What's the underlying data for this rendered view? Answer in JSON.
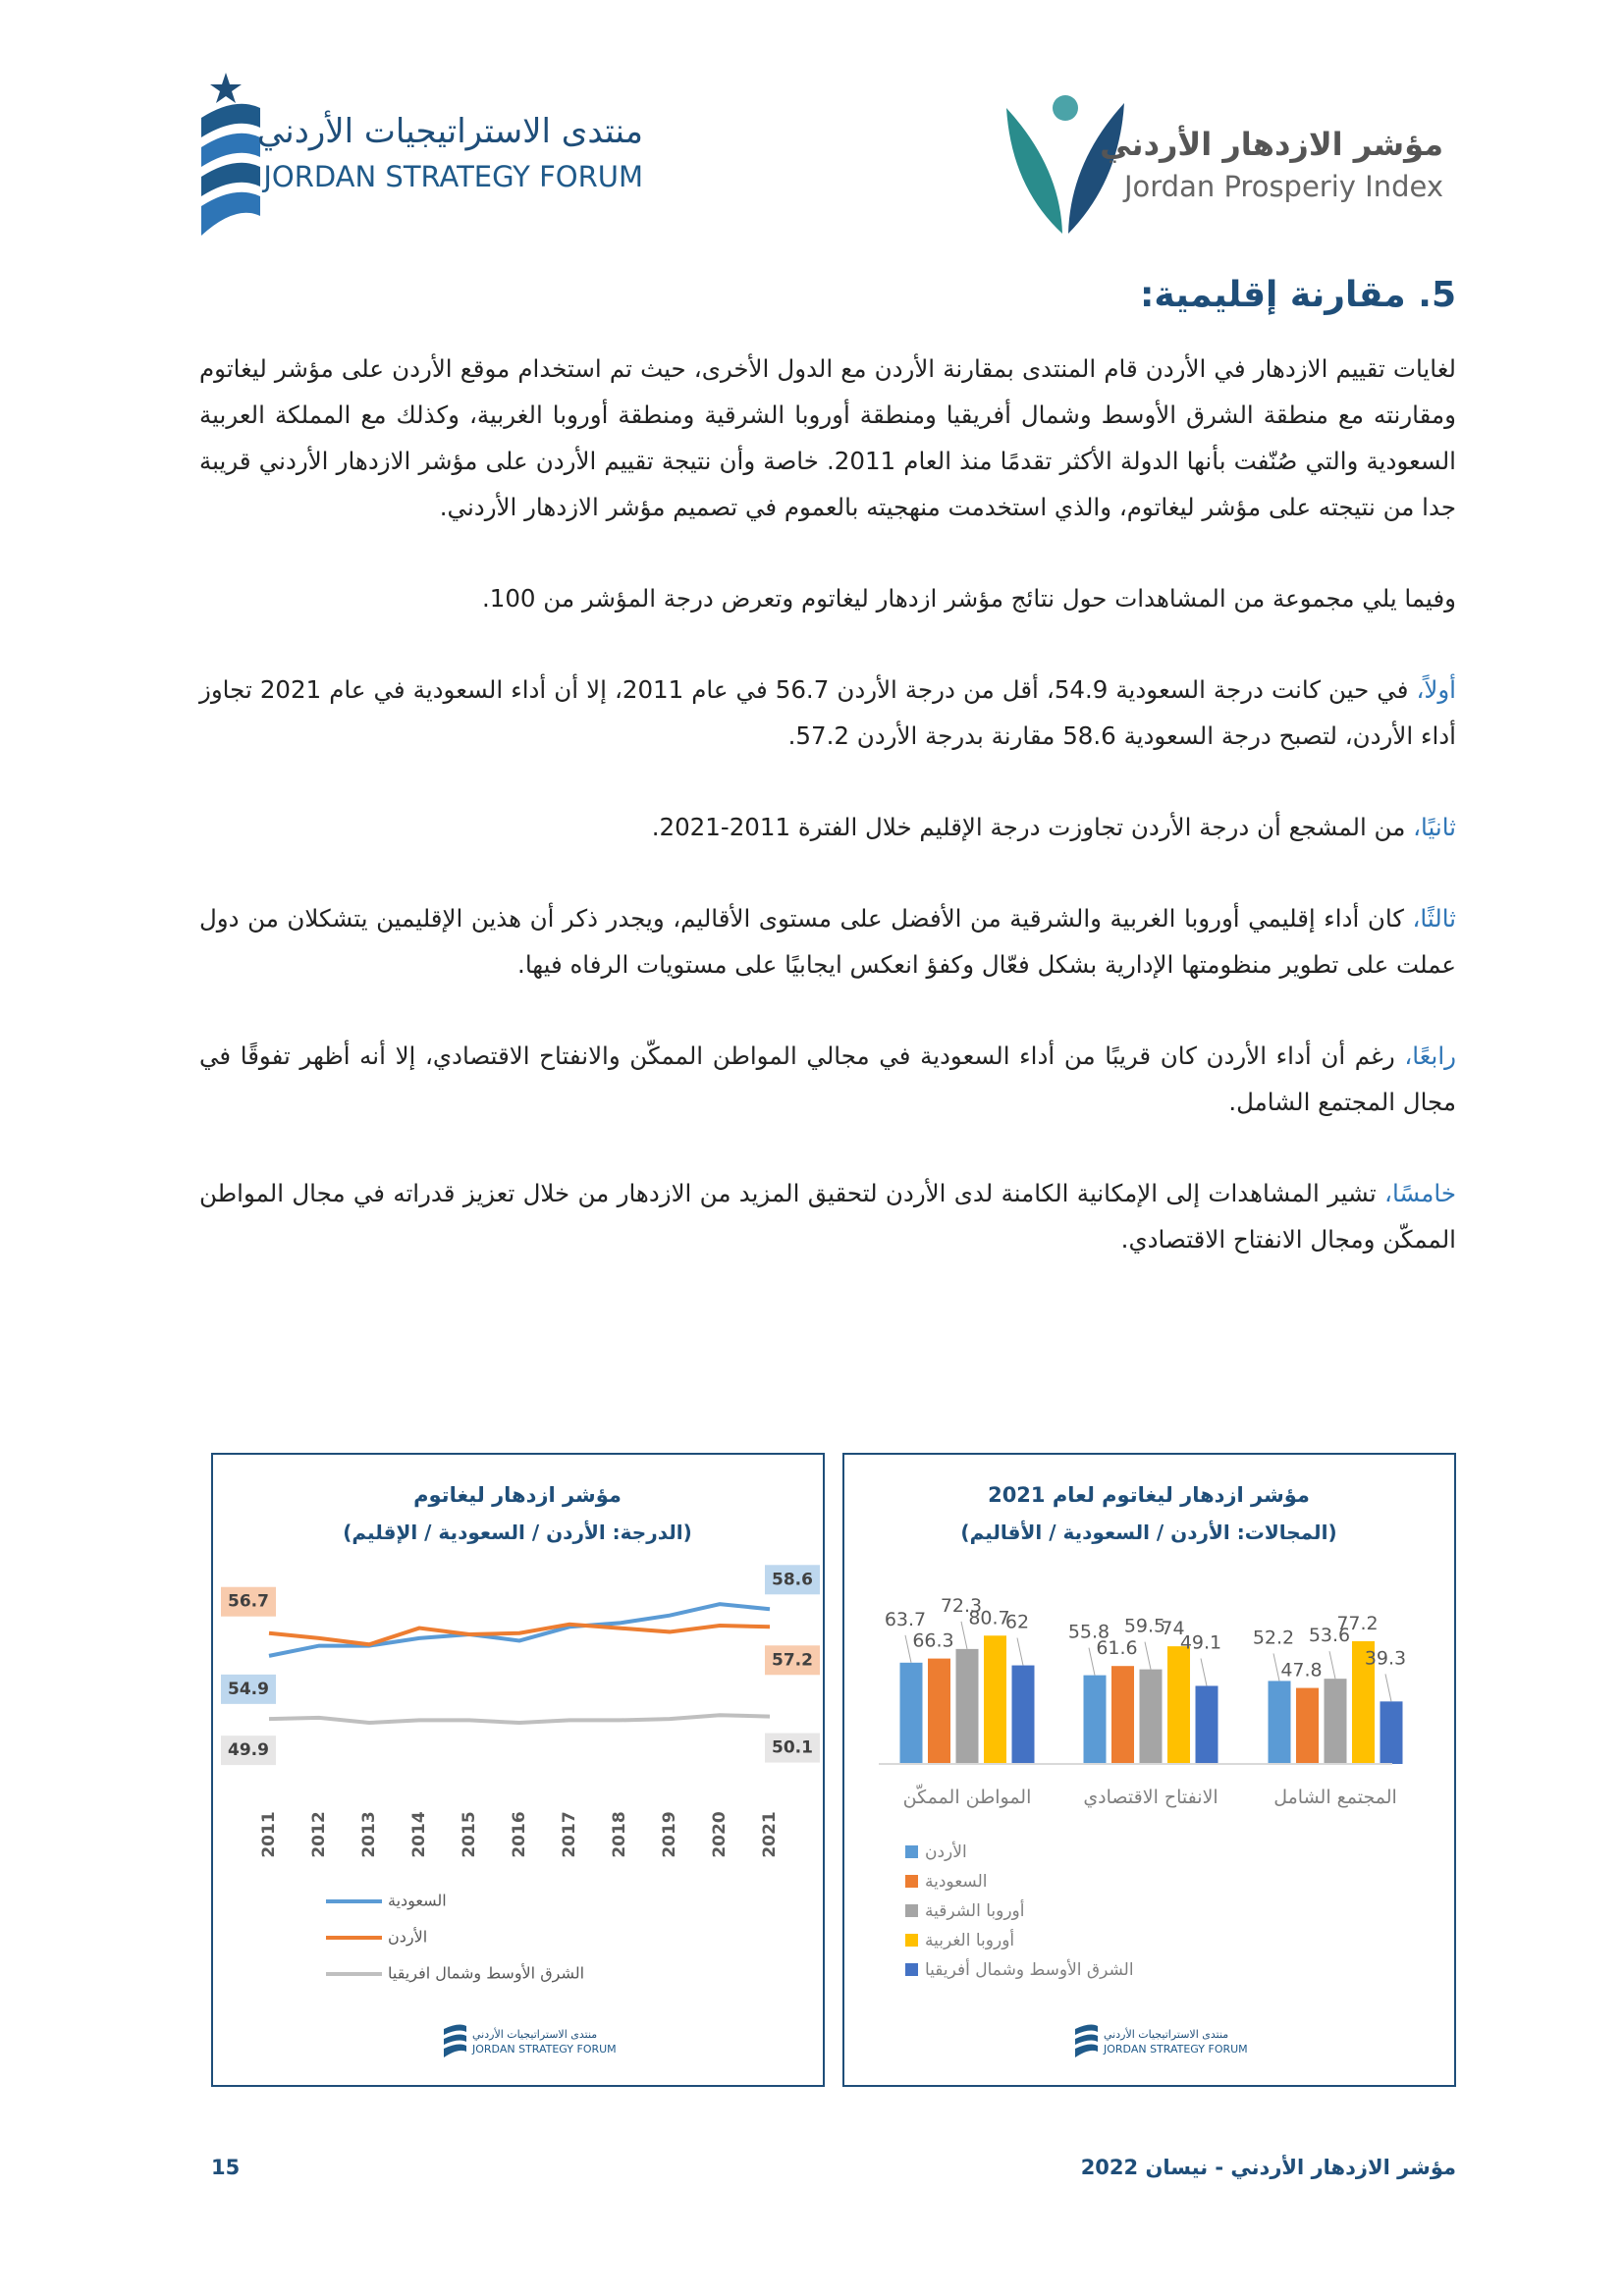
{
  "header": {
    "left_logo": {
      "arabic": "منتدى الاستراتيجيات الأردني",
      "english": "JORDAN STRATEGY FORUM"
    },
    "right_logo": {
      "arabic": "مؤشر الازدهار الأردني",
      "english": "Jordan Prosperiy Index"
    }
  },
  "section_title": "5. مقارنة إقليمية:",
  "paragraphs": [
    {
      "text": "لغايات تقييم الازدهار في الأردن قام المنتدى بمقارنة الأردن مع الدول الأخرى، حيث تم استخدام موقع الأردن على مؤشر ليغاتوم ومقارنته مع منطقة الشرق الأوسط وشمال أفريقيا ومنطقة أوروبا الشرقية ومنطقة أوروبا الغربية، وكذلك مع المملكة العربية السعودية والتي صُنّفت بأنها الدولة الأكثر تقدمًا منذ العام 2011. خاصة وأن نتيجة تقييم الأردن على مؤشر الازدهار الأردني قريبة جدا من نتيجته على مؤشر ليغاتوم، والذي استخدمت منهجيته بالعموم في تصميم مؤشر الازدهار الأردني."
    },
    {
      "text": "وفيما يلي مجموعة من المشاهدات حول نتائج مؤشر ازدهار ليغاتوم وتعرض درجة المؤشر من 100."
    },
    {
      "lead": "أولاً،",
      "text": "في حين كانت درجة السعودية 54.9، أقل من درجة الأردن 56.7 في عام 2011، إلا أن أداء السعودية في عام 2021 تجاوز أداء الأردن، لتصبح درجة السعودية 58.6 مقارنة بدرجة الأردن 57.2."
    },
    {
      "lead": "ثانيًا،",
      "text": "من المشجع أن درجة الأردن تجاوزت درجة الإقليم خلال الفترة 2011-2021."
    },
    {
      "lead": "ثالثًا،",
      "text": "كان أداء إقليمي أوروبا الغربية والشرقية من الأفضل على مستوى الأقاليم، ويجدر ذكر أن هذين الإقليمين يتشكلان من دول عملت على تطوير منظومتها الإدارية بشكل فعّال وكفؤ انعكس ايجابيًا على مستويات الرفاه فيها."
    },
    {
      "lead": "رابعًا،",
      "text": "رغم أن أداء الأردن كان قريبًا من أداء السعودية في مجالي المواطن الممكّن والانفتاح الاقتصادي، إلا أنه أظهر تفوقًا في مجال المجتمع الشامل."
    },
    {
      "lead": "خامسًا،",
      "text": "تشير المشاهدات إلى الإمكانية الكامنة لدى الأردن لتحقيق المزيد من الازدهار من خلال تعزيز قدراته في مجال المواطن الممكّن ومجال الانفتاح الاقتصادي."
    }
  ],
  "chart_data": [
    {
      "type": "line",
      "title": "مؤشر ازدهار ليغاتوم",
      "subtitle": "(الدرجة: الأردن / السعودية / الإقليم)",
      "categories": [
        "2011",
        "2012",
        "2013",
        "2014",
        "2015",
        "2016",
        "2017",
        "2018",
        "2019",
        "2020",
        "2021"
      ],
      "ylim": [
        47.5,
        61.5
      ],
      "series": [
        {
          "name": "السعودية",
          "color": "#5B9BD5",
          "label_fill": "#BDD7EE",
          "values": [
            54.9,
            55.7,
            55.7,
            56.3,
            56.6,
            56.1,
            57.2,
            57.5,
            58.1,
            59.0,
            58.6
          ]
        },
        {
          "name": "الأردن",
          "color": "#ED7D31",
          "label_fill": "#F8CBAD",
          "values": [
            56.7,
            56.3,
            55.8,
            57.1,
            56.6,
            56.7,
            57.4,
            57.1,
            56.8,
            57.3,
            57.2
          ]
        },
        {
          "name": "الشرق الأوسط وشمال افريقيا",
          "color": "#BFBFBF",
          "label_fill": "#E7E6E6",
          "values": [
            49.9,
            50.0,
            49.6,
            49.8,
            49.8,
            49.6,
            49.8,
            49.8,
            49.9,
            50.2,
            50.1
          ]
        }
      ],
      "source_logo": {
        "arabic": "منتدى الاستراتيجيات الأردني",
        "english": "JORDAN STRATEGY FORUM"
      }
    },
    {
      "type": "bar",
      "title": "مؤشر ازدهار ليغاتوم لعام 2021",
      "subtitle": "(المجالات: الأردن / السعودية / الأقاليم)",
      "categories": [
        "المواطن الممكّن",
        "الانفتاح الاقتصادي",
        "المجتمع الشامل"
      ],
      "ylim": [
        0,
        100
      ],
      "series": [
        {
          "name": "الأردن",
          "color": "#5B9BD5",
          "values": [
            63.7,
            55.8,
            52.2
          ]
        },
        {
          "name": "السعودية",
          "color": "#ED7D31",
          "values": [
            66.3,
            61.6,
            47.8
          ]
        },
        {
          "name": "أوروبا الشرقية",
          "color": "#A5A5A5",
          "values": [
            72.3,
            59.5,
            53.6
          ]
        },
        {
          "name": "أوروبا الغربية",
          "color": "#FFC000",
          "values": [
            80.7,
            74.0,
            77.2
          ]
        },
        {
          "name": "الشرق الأوسط وشمال أفريقيا",
          "color": "#4472C4",
          "values": [
            62.0,
            49.1,
            39.3
          ]
        }
      ],
      "source_logo": {
        "arabic": "منتدى الاستراتيجيات الأردني",
        "english": "JORDAN STRATEGY FORUM"
      }
    }
  ],
  "footer": {
    "title": "مؤشر الازدهار الأردني - نيسان 2022",
    "page": "15"
  }
}
